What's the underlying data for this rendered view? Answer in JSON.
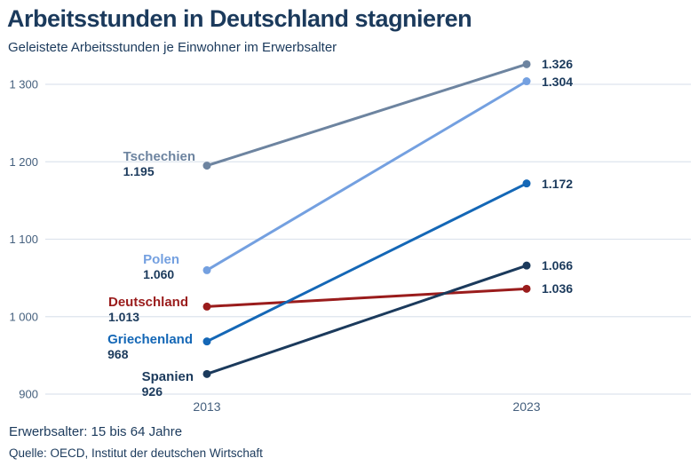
{
  "header": {
    "title": "Arbeitsstunden in Deutschland stagnieren",
    "subtitle": "Geleistete Arbeitsstunden je Einwohner im Erwerbsalter"
  },
  "footer": {
    "note": "Erwerbsalter: 15 bis 64 Jahre",
    "source": "Quelle: OECD, Institut der deutschen Wirtschaft"
  },
  "colors": {
    "title": "#1b3a5c",
    "value_label": "#1b3a5c",
    "axis_label": "#45607e",
    "gridline": "#dde4ed",
    "background": "#ffffff"
  },
  "chart_data": {
    "type": "line",
    "title": "Arbeitsstunden in Deutschland stagnieren",
    "subtitle": "Geleistete Arbeitsstunden je Einwohner im Erwerbsalter",
    "x": [
      "2013",
      "2023"
    ],
    "series": [
      {
        "name": "Tschechien",
        "values": [
          1195,
          1326
        ],
        "value_labels": [
          "1.195",
          "1.326"
        ],
        "color": "#6d84a0"
      },
      {
        "name": "Polen",
        "values": [
          1060,
          1304
        ],
        "value_labels": [
          "1.060",
          "1.304"
        ],
        "color": "#74a0e0"
      },
      {
        "name": "Deutschland",
        "values": [
          1013,
          1036
        ],
        "value_labels": [
          "1.013",
          "1.036"
        ],
        "color": "#9a1c1c"
      },
      {
        "name": "Griechenland",
        "values": [
          968,
          1172
        ],
        "value_labels": [
          "968",
          "1.172"
        ],
        "color": "#1467b6"
      },
      {
        "name": "Spanien",
        "values": [
          926,
          1066
        ],
        "value_labels": [
          "926",
          "1.066"
        ],
        "color": "#1b3a5c"
      }
    ],
    "yticks": [
      900,
      1000,
      1100,
      1200,
      1300
    ],
    "ytick_labels": [
      "900",
      "1 000",
      "1 100",
      "1 200",
      "1 300"
    ],
    "xtick_labels": [
      "2013",
      "2023"
    ],
    "ylim": [
      880,
      1345
    ],
    "grid": true,
    "legend_position": "inline-left",
    "xlabel": "",
    "ylabel": ""
  }
}
